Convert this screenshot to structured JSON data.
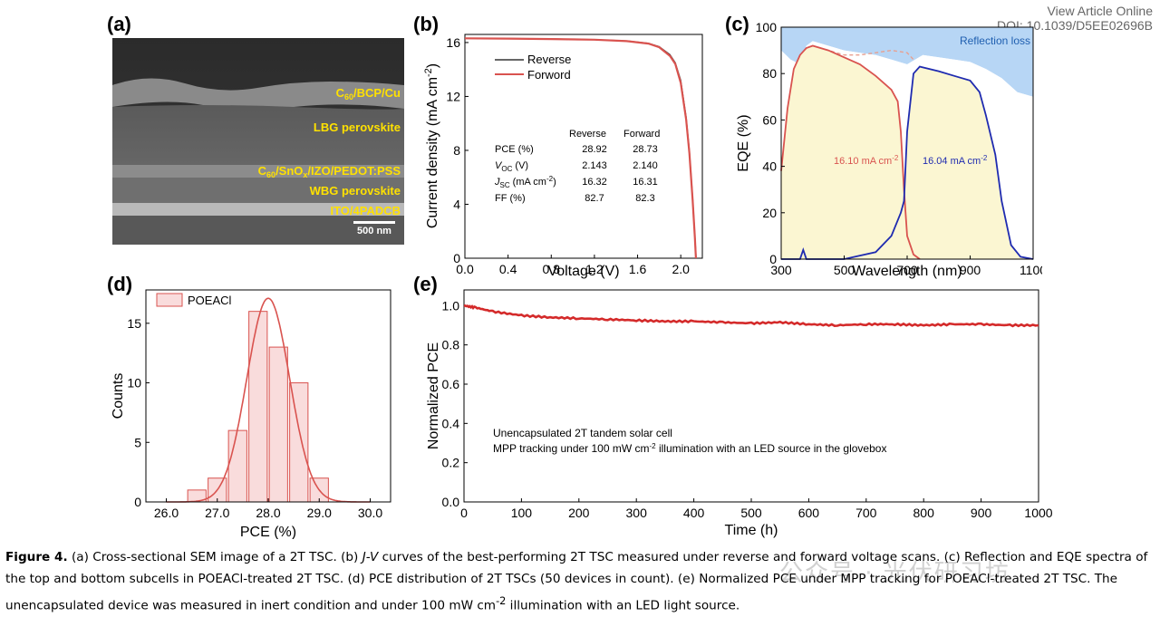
{
  "header": {
    "view_article": "View Article Online",
    "doi": "DOI: 10.1039/D5EE02696B"
  },
  "panels": {
    "a": "(a)",
    "b": "(b)",
    "c": "(c)",
    "d": "(d)",
    "e": "(e)"
  },
  "sem": {
    "layers": [
      "C60/BCP/Cu",
      "LBG perovskite",
      "C60/SnOx/IZO/PEDOT:PSS",
      "WBG perovskite",
      "ITO/4PADCB"
    ],
    "layer_c60": {
      "base": "C",
      "sub": "60",
      "rest": "/BCP/Cu"
    },
    "layer_mid": {
      "p1": "C",
      "s1": "60",
      "p2": "/SnO",
      "s2": "x",
      "p3": "/IZO/PEDOT:PSS"
    },
    "scale_bar": "500 nm"
  },
  "watermark": "公众号 · 光伏研习坊",
  "caption": {
    "fig": "Figure 4.",
    "t1": " (a) Cross-sectional SEM image of a 2T TSC. (b) ",
    "jv": "J-V",
    "t2": " curves of the best-performing 2T TSC measured under reverse and forward voltage scans. (c) Reflection and EQE spectra of the top and bottom subcells in POEACl-treated 2T TSC. (d) PCE distribution of 2T TSCs (50 devices in count). (e) Normalized PCE under MPP tracking for POEACl-treated 2T TSC. The unencapsulated device was measured in inert condition and under 100 mW cm",
    "sup": "-2",
    "t3": " illumination with an LED light source."
  },
  "chart_data": [
    {
      "id": "b",
      "type": "line",
      "xlabel": "Voltage (V)",
      "ylabel": "Current density (mA cm",
      "ylabel_sup": "-2",
      "ylabel_end": ")",
      "xlim": [
        0.0,
        2.2
      ],
      "ylim": [
        0,
        16.6
      ],
      "xticks": [
        0.0,
        0.4,
        0.8,
        1.2,
        1.6,
        2.0
      ],
      "xtick_labels": [
        "0.0",
        "0.4",
        "0.8",
        "1.2",
        "1.6",
        "2.0"
      ],
      "yticks": [
        0,
        4,
        8,
        12,
        16
      ],
      "ytick_labels": [
        "0",
        "4",
        "8",
        "12",
        "16"
      ],
      "legend": [
        "Reverse",
        "Forword"
      ],
      "series": [
        {
          "name": "Reverse",
          "color": "#333333",
          "x": [
            0.0,
            0.4,
            0.8,
            1.2,
            1.5,
            1.7,
            1.8,
            1.9,
            1.95,
            2.0,
            2.05,
            2.08,
            2.11,
            2.13,
            2.143
          ],
          "y": [
            16.32,
            16.3,
            16.27,
            16.22,
            16.12,
            15.95,
            15.7,
            15.1,
            14.5,
            13.2,
            10.5,
            8.0,
            4.5,
            1.8,
            0
          ]
        },
        {
          "name": "Forword",
          "color": "#d9534f",
          "x": [
            0.0,
            0.4,
            0.8,
            1.2,
            1.5,
            1.7,
            1.8,
            1.9,
            1.95,
            2.0,
            2.05,
            2.08,
            2.11,
            2.13,
            2.14
          ],
          "y": [
            16.31,
            16.29,
            16.26,
            16.21,
            16.1,
            15.92,
            15.65,
            15.0,
            14.4,
            13.0,
            10.3,
            7.8,
            4.3,
            1.6,
            0
          ]
        }
      ],
      "table": {
        "headers": [
          "",
          "Reverse",
          "Forward"
        ],
        "rows": [
          {
            "label": "PCE (%)",
            "rev": "28.92",
            "fwd": "28.73"
          },
          {
            "label": "V",
            "label_sub": "OC",
            "label_rest": " (V)",
            "rev": "2.143",
            "fwd": "2.140"
          },
          {
            "label": "J",
            "label_sub": "SC",
            "label_rest": " (mA cm",
            "label_sup": "-2",
            "label_end": ")",
            "rev": "16.32",
            "fwd": "16.31"
          },
          {
            "label": "FF (%)",
            "rev": "82.7",
            "fwd": "82.3"
          }
        ]
      }
    },
    {
      "id": "c",
      "type": "area",
      "xlabel": "Wavelength (nm)",
      "ylabel": "EQE (%)",
      "xlim": [
        300,
        1100
      ],
      "ylim": [
        0,
        100
      ],
      "xticks": [
        300,
        500,
        700,
        900,
        1100
      ],
      "xtick_labels": [
        "300",
        "500",
        "700",
        "900",
        "1100"
      ],
      "yticks": [
        0,
        20,
        40,
        60,
        80,
        100
      ],
      "ytick_labels": [
        "0",
        "20",
        "40",
        "60",
        "80",
        "100"
      ],
      "annotations": {
        "reflection": "Reflection loss",
        "top_jsc": "16.10 mA cm",
        "bottom_jsc": "16.04 mA cm",
        "sup": "-2"
      },
      "series": [
        {
          "name": "1-R",
          "color": "#a6cdf2",
          "x": [
            300,
            330,
            360,
            380,
            400,
            450,
            500,
            550,
            600,
            650,
            700,
            750,
            800,
            850,
            900,
            950,
            1000,
            1050,
            1100
          ],
          "y": [
            90,
            86,
            84,
            92,
            94,
            92,
            90,
            89,
            88,
            86,
            84,
            88,
            87,
            86,
            85,
            82,
            78,
            72,
            70
          ]
        },
        {
          "name": "Top EQE",
          "color": "#d9534f",
          "x": [
            300,
            320,
            340,
            360,
            380,
            400,
            450,
            500,
            550,
            600,
            650,
            670,
            680,
            690,
            700,
            720,
            740
          ],
          "y": [
            38,
            65,
            82,
            88,
            91,
            92,
            90,
            87,
            84,
            79,
            73,
            68,
            55,
            30,
            10,
            2,
            0
          ]
        },
        {
          "name": "Top+Bottom (dashed)",
          "color": "#e8a090",
          "x": [
            400,
            450,
            500,
            550,
            600,
            650,
            700,
            720
          ],
          "y": [
            92,
            90,
            88,
            88,
            89,
            90,
            89,
            86
          ]
        },
        {
          "name": "Bottom EQE",
          "color": "#1f2bb0",
          "x": [
            300,
            360,
            370,
            380,
            400,
            500,
            600,
            650,
            680,
            690,
            700,
            720,
            740,
            800,
            850,
            900,
            930,
            950,
            980,
            1000,
            1030,
            1060,
            1100
          ],
          "y": [
            0,
            0,
            4,
            0,
            0,
            0,
            3,
            10,
            20,
            25,
            55,
            80,
            83,
            81,
            79,
            77,
            72,
            62,
            45,
            25,
            6,
            1,
            0
          ]
        }
      ]
    },
    {
      "id": "d",
      "type": "bar",
      "xlabel": "PCE (%)",
      "ylabel": "Counts",
      "xlim": [
        25.6,
        30.4
      ],
      "ylim": [
        0,
        17.8
      ],
      "xticks": [
        26.0,
        27.0,
        28.0,
        29.0,
        30.0
      ],
      "xtick_labels": [
        "26.0",
        "27.0",
        "28.0",
        "29.0",
        "30.0"
      ],
      "yticks": [
        0,
        5,
        10,
        15
      ],
      "ytick_labels": [
        "0",
        "5",
        "10",
        "15"
      ],
      "legend": [
        "POEACl"
      ],
      "bin_centers": [
        26.6,
        27.0,
        27.4,
        27.8,
        28.2,
        28.6,
        29.0
      ],
      "bin_width": 0.36,
      "values": [
        1,
        2,
        6,
        16,
        13,
        10,
        2
      ],
      "fit": {
        "mu": 28.0,
        "sigma": 0.42,
        "peak": 17.1
      }
    },
    {
      "id": "e",
      "type": "line",
      "xlabel": "Time  (h)",
      "ylabel": "Normalized PCE",
      "xlim": [
        0,
        1000
      ],
      "ylim": [
        0,
        1.08
      ],
      "xticks": [
        0,
        100,
        200,
        300,
        400,
        500,
        600,
        700,
        800,
        900,
        1000
      ],
      "xtick_labels": [
        "0",
        "100",
        "200",
        "300",
        "400",
        "500",
        "600",
        "700",
        "800",
        "900",
        "1000"
      ],
      "yticks": [
        0.0,
        0.2,
        0.4,
        0.6,
        0.8,
        1.0
      ],
      "ytick_labels": [
        "0.0",
        "0.2",
        "0.4",
        "0.6",
        "0.8",
        "1.0"
      ],
      "annotation_1": "Unencapsulated 2T tandem solar cell",
      "annotation_2": "MPP tracking under 100 mW cm",
      "annotation_2_sup": "-2",
      "annotation_2_end": " illumination with an LED source in the glovebox",
      "series": [
        {
          "name": "POEACl",
          "color": "#d42a2a",
          "x": [
            0,
            20,
            50,
            100,
            150,
            200,
            250,
            300,
            350,
            400,
            450,
            500,
            550,
            600,
            650,
            700,
            750,
            800,
            850,
            900,
            950,
            1000
          ],
          "y": [
            1.0,
            0.99,
            0.97,
            0.95,
            0.94,
            0.935,
            0.93,
            0.925,
            0.92,
            0.92,
            0.915,
            0.91,
            0.915,
            0.905,
            0.9,
            0.905,
            0.905,
            0.9,
            0.905,
            0.905,
            0.9,
            0.9
          ]
        }
      ]
    }
  ]
}
